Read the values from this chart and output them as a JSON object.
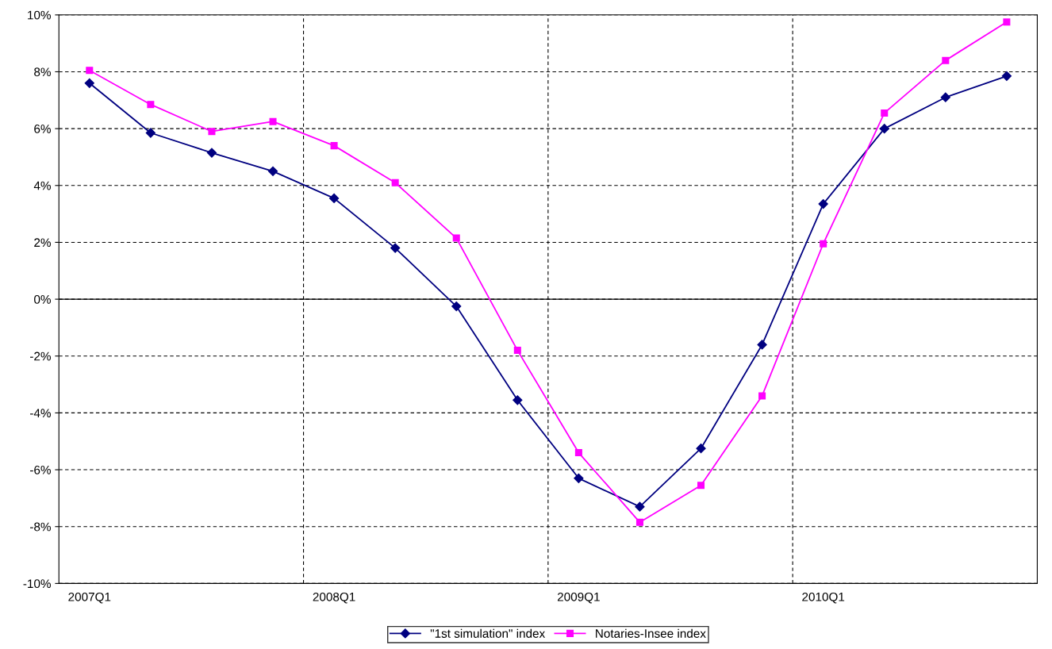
{
  "chart_data": {
    "type": "line",
    "categories": [
      "2007Q1",
      null,
      null,
      null,
      "2008Q1",
      null,
      null,
      null,
      "2009Q1",
      null,
      null,
      null,
      "2010Q1",
      null,
      null,
      null
    ],
    "series": [
      {
        "name": "\"1st simulation\" index",
        "color": "#000080",
        "marker": "diamond",
        "values": [
          7.6,
          5.85,
          5.15,
          4.5,
          3.55,
          1.8,
          -0.25,
          -3.55,
          -6.3,
          -7.3,
          -5.25,
          -1.6,
          3.35,
          6.0,
          7.1,
          7.85
        ]
      },
      {
        "name": "Notaries-Insee index",
        "color": "#ff00ff",
        "marker": "square",
        "values": [
          8.05,
          6.85,
          5.9,
          6.25,
          5.4,
          4.1,
          2.15,
          -1.8,
          -5.4,
          -7.85,
          -6.55,
          -3.4,
          1.95,
          6.55,
          8.4,
          9.75
        ]
      }
    ],
    "ylim": [
      -10,
      10
    ],
    "yticks": [
      {
        "value": -10,
        "label": "-10%"
      },
      {
        "value": -8,
        "label": "-8%"
      },
      {
        "value": -6,
        "label": "-6%"
      },
      {
        "value": -4,
        "label": "-4%"
      },
      {
        "value": -2,
        "label": "-2%"
      },
      {
        "value": 0,
        "label": "0%"
      },
      {
        "value": 2,
        "label": "2%"
      },
      {
        "value": 4,
        "label": "4%"
      },
      {
        "value": 6,
        "label": "6%"
      },
      {
        "value": 8,
        "label": "8%"
      },
      {
        "value": 10,
        "label": "10%"
      }
    ],
    "ref_lines": [
      {
        "axis": "y",
        "value": 0,
        "color": "#000000",
        "line_style": "solid"
      }
    ],
    "grid": true,
    "line_style": "solid",
    "legend": "bottom"
  }
}
